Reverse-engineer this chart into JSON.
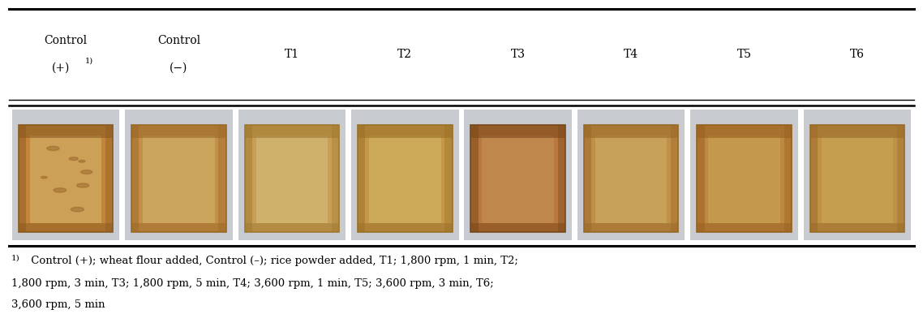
{
  "n_cols": 8,
  "bg_color": "#ffffff",
  "cell_bg_color": "#d8d8dc",
  "text_color": "#000000",
  "headers_line1": [
    "Control",
    "Control",
    "T1",
    "T2",
    "T3",
    "T4",
    "T5",
    "T6"
  ],
  "headers_line2": [
    "(+)",
    "(−)",
    "",
    "",
    "",
    "",
    "",
    ""
  ],
  "has_superscript": [
    true,
    false,
    false,
    false,
    false,
    false,
    false,
    false
  ],
  "footnote_superscript": "1)",
  "footnote_line1": " Control (+); wheat flour added, Control (–); rice powder added, T1; 1,800 rpm, 1 min, T2;",
  "footnote_line2": "1,800 rpm, 3 min, T3; 1,800 rpm, 5 min, T4; 3,600 rpm, 1 min, T5; 3,600 rpm, 3 min, T6;",
  "footnote_line3": "3,600 rpm, 5 min",
  "bread_base_colors": [
    "#c4853a",
    "#c49048",
    "#c8a055",
    "#c49848",
    "#b87840",
    "#c09048",
    "#be8840",
    "#c09248"
  ],
  "bread_light_colors": [
    "#d4b870",
    "#d4b870",
    "#d8c080",
    "#d4b868",
    "#c89458",
    "#d0b068",
    "#caa858",
    "#caa858"
  ],
  "bread_dark_colors": [
    "#8b5a20",
    "#9b6828",
    "#a07830",
    "#9b7028",
    "#7a4818",
    "#9a6828",
    "#986020",
    "#9a6a28"
  ]
}
